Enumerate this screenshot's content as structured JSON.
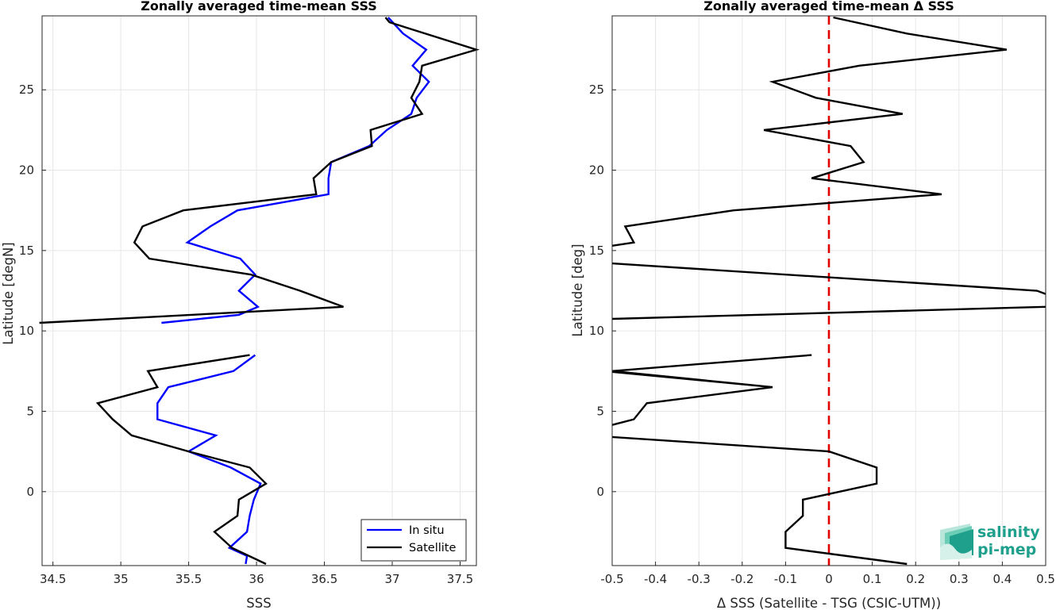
{
  "chart_data": [
    {
      "type": "line",
      "title": "Zonally averaged time-mean SSS",
      "xlabel": "SSS",
      "ylabel": "Latitude [degN]",
      "xlim": [
        34.42,
        37.62
      ],
      "ylim": [
        -4.6,
        29.6
      ],
      "xticks": [
        "34.5",
        "35",
        "35.5",
        "36",
        "36.5",
        "37",
        "37.5"
      ],
      "yticks": [
        "0",
        "5",
        "10",
        "15",
        "20",
        "25"
      ],
      "grid": true,
      "legend_position": "bottom-right",
      "series": [
        {
          "name": "In situ",
          "color": "#0000ff",
          "points": [
            [
              36.97,
              29.5
            ],
            [
              37.08,
              28.5
            ],
            [
              37.25,
              27.5
            ],
            [
              37.15,
              26.5
            ],
            [
              37.27,
              25.5
            ],
            [
              37.18,
              24.5
            ],
            [
              37.14,
              23.5
            ],
            [
              36.96,
              22.5
            ],
            [
              36.83,
              21.5
            ],
            [
              36.55,
              20.5
            ],
            [
              36.53,
              19.5
            ],
            [
              36.53,
              18.5
            ],
            [
              35.86,
              17.5
            ],
            [
              35.66,
              16.5
            ],
            [
              35.49,
              15.5
            ],
            [
              35.88,
              14.5
            ],
            [
              35.99,
              13.5
            ],
            [
              35.87,
              12.5
            ],
            [
              36.01,
              11.5
            ],
            [
              35.87,
              11.0
            ],
            [
              35.3,
              10.5
            ]
          ]
        },
        {
          "name": "",
          "color": "#0000ff",
          "points": [
            [
              35.99,
              8.5
            ],
            [
              35.83,
              7.5
            ],
            [
              35.35,
              6.5
            ],
            [
              35.27,
              5.5
            ],
            [
              35.27,
              4.5
            ],
            [
              35.7,
              3.5
            ],
            [
              35.5,
              2.5
            ],
            [
              35.81,
              1.5
            ],
            [
              36.03,
              0.5
            ],
            [
              35.98,
              -0.5
            ],
            [
              35.95,
              -1.5
            ],
            [
              35.93,
              -2.5
            ],
            [
              35.8,
              -3.5
            ],
            [
              35.93,
              -4.0
            ],
            [
              35.92,
              -4.5
            ]
          ]
        },
        {
          "name": "Satellite",
          "color": "#000000",
          "points": [
            [
              36.95,
              29.5
            ],
            [
              36.98,
              29.2
            ],
            [
              37.62,
              27.5
            ],
            [
              37.22,
              26.5
            ],
            [
              37.2,
              25.5
            ],
            [
              37.14,
              24.5
            ],
            [
              37.22,
              23.5
            ],
            [
              36.84,
              22.5
            ],
            [
              36.85,
              21.5
            ],
            [
              36.55,
              20.5
            ],
            [
              36.42,
              19.5
            ],
            [
              36.44,
              18.5
            ],
            [
              35.46,
              17.5
            ],
            [
              35.16,
              16.5
            ],
            [
              35.1,
              15.5
            ],
            [
              35.21,
              14.5
            ],
            [
              35.96,
              13.5
            ],
            [
              36.32,
              12.5
            ],
            [
              36.64,
              11.5
            ],
            [
              34.4,
              10.5
            ]
          ]
        },
        {
          "name": "",
          "color": "#000000",
          "points": [
            [
              35.95,
              8.5
            ],
            [
              35.2,
              7.5
            ],
            [
              35.27,
              6.5
            ],
            [
              34.83,
              5.5
            ],
            [
              34.94,
              4.5
            ],
            [
              35.08,
              3.5
            ],
            [
              35.5,
              2.5
            ],
            [
              35.95,
              1.5
            ],
            [
              36.07,
              0.5
            ],
            [
              35.87,
              -0.5
            ],
            [
              35.86,
              -1.5
            ],
            [
              35.69,
              -2.5
            ],
            [
              35.82,
              -3.5
            ],
            [
              36.07,
              -4.5
            ]
          ]
        }
      ]
    },
    {
      "type": "line",
      "title": "Zonally averaged time-mean Δ SSS",
      "xlabel": "Δ SSS (Satellite - TSG (CSIC-UTM))",
      "ylabel": "Latitude [deg]",
      "xlim": [
        -0.5,
        0.5
      ],
      "ylim": [
        -4.6,
        29.6
      ],
      "xticks": [
        "-0.5",
        "-0.4",
        "-0.3",
        "-0.2",
        "-0.1",
        "0",
        "0.1",
        "0.2",
        "0.3",
        "0.4",
        "0.5"
      ],
      "yticks": [
        "0",
        "5",
        "10",
        "15",
        "20",
        "25"
      ],
      "grid": true,
      "reference_line": {
        "x": 0,
        "color": "#e00000",
        "style": "dashed"
      },
      "series": [
        {
          "name": "",
          "color": "#000000",
          "points": [
            [
              0.01,
              29.5
            ],
            [
              0.18,
              28.5
            ],
            [
              0.41,
              27.5
            ],
            [
              0.07,
              26.5
            ],
            [
              -0.13,
              25.5
            ],
            [
              -0.03,
              24.5
            ],
            [
              0.17,
              23.5
            ],
            [
              -0.15,
              22.5
            ],
            [
              0.05,
              21.5
            ],
            [
              0.08,
              20.5
            ],
            [
              -0.04,
              19.5
            ],
            [
              0.26,
              18.5
            ],
            [
              -0.22,
              17.5
            ],
            [
              -0.47,
              16.5
            ],
            [
              -0.45,
              15.5
            ],
            [
              -0.5,
              15.3
            ]
          ]
        },
        {
          "name": "",
          "color": "#000000",
          "points": [
            [
              -0.5,
              14.2
            ],
            [
              0.48,
              12.5
            ],
            [
              0.5,
              12.3
            ]
          ]
        },
        {
          "name": "",
          "color": "#000000",
          "points": [
            [
              0.5,
              11.5
            ],
            [
              -0.5,
              10.75
            ]
          ]
        },
        {
          "name": "",
          "color": "#000000",
          "points": [
            [
              -0.04,
              8.5
            ],
            [
              -0.5,
              7.5
            ],
            [
              -0.13,
              6.5
            ],
            [
              -0.5,
              7.45
            ]
          ]
        },
        {
          "name": "",
          "color": "#000000",
          "points": [
            [
              -0.5,
              4.15
            ],
            [
              -0.45,
              4.5
            ],
            [
              -0.42,
              5.5
            ],
            [
              -0.13,
              6.5
            ]
          ]
        },
        {
          "name": "",
          "color": "#000000",
          "points": [
            [
              -0.5,
              3.4
            ],
            [
              0.0,
              2.5
            ],
            [
              0.11,
              1.5
            ],
            [
              0.11,
              0.5
            ],
            [
              -0.06,
              -0.5
            ],
            [
              -0.06,
              -1.5
            ],
            [
              -0.1,
              -2.5
            ],
            [
              -0.1,
              -3.5
            ],
            [
              0.18,
              -4.5
            ]
          ]
        }
      ]
    }
  ],
  "legend": {
    "entries": [
      {
        "label": "In situ",
        "color": "#0000ff"
      },
      {
        "label": "Satellite",
        "color": "#000000"
      }
    ]
  },
  "logo": {
    "line1": "salinity",
    "line2": "pi-mep",
    "color": "#1fa08c"
  }
}
